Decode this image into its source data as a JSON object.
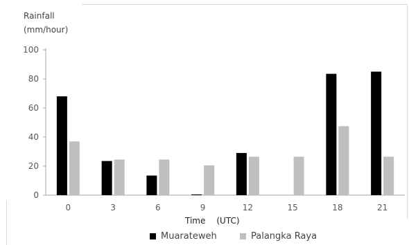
{
  "chart_data": {
    "type": "bar",
    "ylabel_line1": "Rainfall",
    "ylabel_line2": "(mm/hour)",
    "xlabel": "Time",
    "xlabel_unit": "(UTC)",
    "categories": [
      "0",
      "3",
      "6",
      "9",
      "12",
      "15",
      "18",
      "21"
    ],
    "yticks": [
      0,
      20,
      40,
      60,
      80,
      100
    ],
    "ylim": [
      0,
      100
    ],
    "grid": false,
    "legend_position": "bottom",
    "series": [
      {
        "name": "Muarateweh",
        "color": "#000000",
        "values": [
          68,
          23.5,
          13.5,
          0.5,
          29,
          0,
          83.5,
          85
        ]
      },
      {
        "name": "Palangka Raya",
        "color": "#bfbfbf",
        "values": [
          37,
          24.5,
          24.5,
          20.5,
          26.5,
          26.5,
          47.5,
          26.5
        ]
      }
    ]
  }
}
